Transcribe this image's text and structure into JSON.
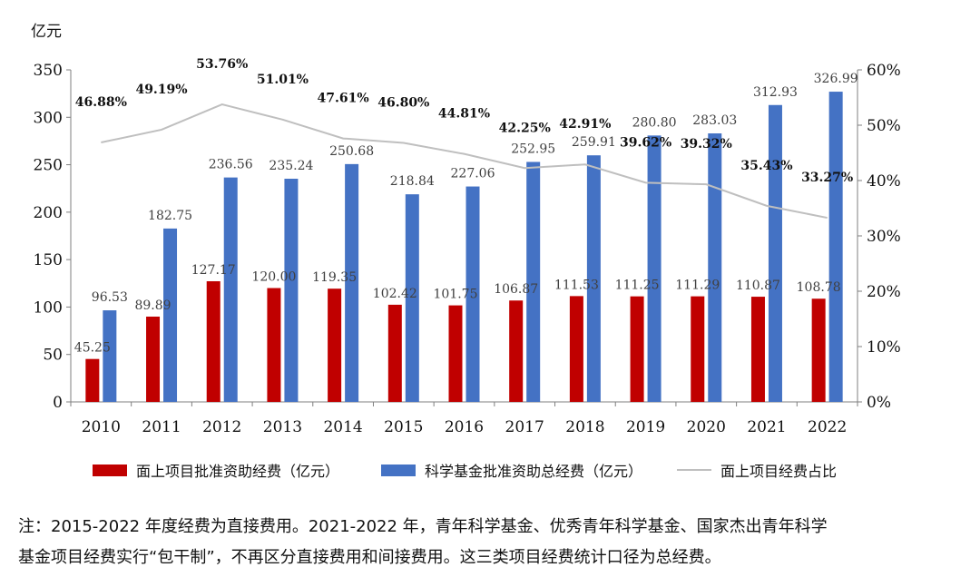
{
  "chart_data": {
    "type": "bar",
    "categories": [
      "2010",
      "2011",
      "2012",
      "2013",
      "2014",
      "2015",
      "2016",
      "2017",
      "2018",
      "2019",
      "2020",
      "2021",
      "2022"
    ],
    "y_unit_label": "亿元",
    "ylim": [
      0,
      350
    ],
    "yticks": [
      0,
      50,
      100,
      150,
      200,
      250,
      300,
      350
    ],
    "y2lim": [
      0,
      0.6
    ],
    "y2ticks": [
      "0%",
      "10%",
      "20%",
      "30%",
      "40%",
      "50%",
      "60%"
    ],
    "series": [
      {
        "name": "面上项目批准资助经费（亿元）",
        "kind": "bar",
        "color": "#c00000",
        "values": [
          45.25,
          89.89,
          127.17,
          120.0,
          119.35,
          102.42,
          101.75,
          106.87,
          111.53,
          111.25,
          111.29,
          110.87,
          108.78
        ],
        "labels": [
          "45.25",
          "89.89",
          "127.17",
          "120.00",
          "119.35",
          "102.42",
          "101.75",
          "106.87",
          "111.53",
          "111.25",
          "111.29",
          "110.87",
          "108.78"
        ]
      },
      {
        "name": "科学基金批准资助总经费（亿元）",
        "kind": "bar",
        "color": "#4472c4",
        "values": [
          96.53,
          182.75,
          236.56,
          235.24,
          250.68,
          218.84,
          227.06,
          252.95,
          259.91,
          280.8,
          283.03,
          312.93,
          326.99
        ],
        "labels": [
          "96.53",
          "182.75",
          "236.56",
          "235.24",
          "250.68",
          "218.84",
          "227.06",
          "252.95",
          "259.91",
          "280.80",
          "283.03",
          "312.93",
          "326.99"
        ]
      },
      {
        "name": "面上项目经费占比",
        "kind": "line",
        "axis": "right",
        "color": "#bfbfbf",
        "values": [
          0.4688,
          0.4919,
          0.5376,
          0.5101,
          0.4761,
          0.468,
          0.4481,
          0.4225,
          0.4291,
          0.3962,
          0.3932,
          0.3543,
          0.3327
        ],
        "labels": [
          "46.88%",
          "49.19%",
          "53.76%",
          "51.01%",
          "47.61%",
          "46.80%",
          "44.81%",
          "42.25%",
          "42.91%",
          "39.62%",
          "39.32%",
          "35.43%",
          "33.27%"
        ]
      }
    ],
    "legend_position": "bottom",
    "grid": false
  },
  "note": {
    "line1": "注：2015-2022 年度经费为直接费用。2021-2022 年，青年科学基金、优秀青年科学基金、国家杰出青年科学",
    "line2": "基金项目经费实行“包干制”，不再区分直接费用和间接费用。这三类项目经费统计口径为总经费。"
  }
}
